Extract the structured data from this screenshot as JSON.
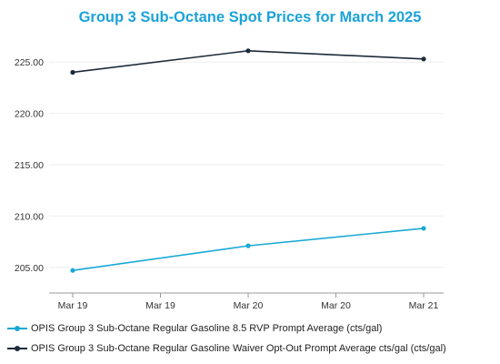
{
  "colors": {
    "title": "#1aa3d9",
    "grid": "#eeeeee",
    "axis": "#999999"
  },
  "chart_data": {
    "type": "line",
    "title": "Group 3 Sub-Octane Spot Prices for March 2025",
    "categories": [
      "Mar 19",
      "Mar 19",
      "Mar 20",
      "Mar 20",
      "Mar 21"
    ],
    "x": [
      0,
      1,
      2
    ],
    "x_positions": [
      0,
      2,
      4
    ],
    "ylim": [
      202.5,
      227.5
    ],
    "yticks": [
      "205.00",
      "210.00",
      "215.00",
      "220.00",
      "225.00"
    ],
    "ytick_values": [
      205,
      210,
      215,
      220,
      225
    ],
    "grid": true,
    "legend_position": "bottom-left",
    "series": [
      {
        "name": "OPIS Group 3 Sub-Octane Regular Gasoline 8.5 RVP Prompt Average (cts/gal)",
        "color": "#1aa9d6",
        "values": [
          204.7,
          207.1,
          208.8
        ]
      },
      {
        "name": "OPIS Group 3 Sub-Octane Regular Gasoline Waiver Opt-Out Prompt Average cts/gal (cts/gal)",
        "color": "#1c2b3a",
        "values": [
          224.0,
          226.1,
          225.3
        ]
      }
    ]
  }
}
